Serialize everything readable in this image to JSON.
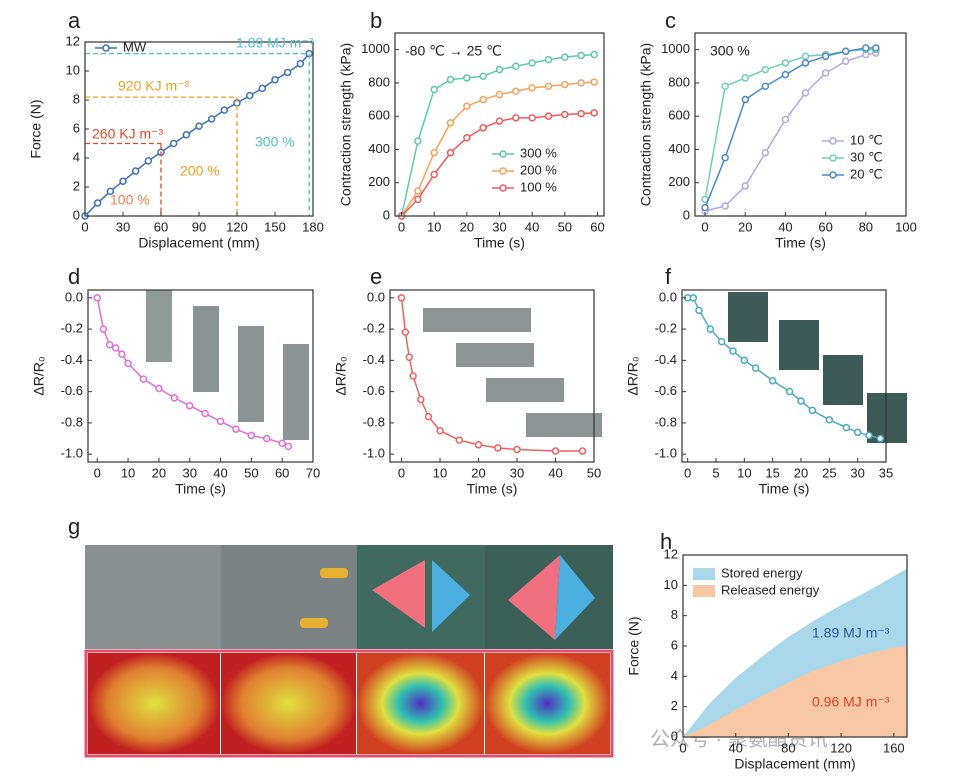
{
  "chart_data": [
    {
      "panel": "a",
      "type": "line",
      "xlabel": "Displacement (mm)",
      "ylabel": "Force (N)",
      "x": [
        0,
        10,
        20,
        30,
        40,
        50,
        60,
        70,
        80,
        90,
        100,
        110,
        120,
        130,
        140,
        150,
        160,
        170,
        177
      ],
      "series": [
        {
          "name": "MW",
          "color": "#3f6fb5",
          "values": [
            0,
            0.9,
            1.7,
            2.4,
            3.1,
            3.8,
            4.4,
            5.0,
            5.6,
            6.2,
            6.7,
            7.3,
            7.8,
            8.3,
            8.8,
            9.4,
            9.9,
            10.5,
            11.2
          ]
        }
      ],
      "xlim": [
        0,
        180
      ],
      "ylim": [
        0,
        12
      ],
      "xticks": [
        0,
        30,
        60,
        90,
        120,
        150,
        180
      ],
      "yticks": [
        0,
        2,
        4,
        6,
        8,
        10,
        12
      ],
      "guides": [
        {
          "x": 60,
          "y": 5,
          "color": "#e8452a"
        },
        {
          "x": 120,
          "y": 8.2,
          "color": "#f0a020"
        },
        {
          "x": 177,
          "y": 11.2,
          "color": "#4cc3c8"
        }
      ],
      "annotations": [
        {
          "text": "1.89 MJ m⁻³",
          "color": "#4cc3c8"
        },
        {
          "text": "920 KJ m⁻³",
          "color": "#f0a020"
        },
        {
          "text": "260 KJ m⁻³",
          "color": "#e8452a"
        },
        {
          "text": "100 %",
          "color": "#f08050"
        },
        {
          "text": "200 %",
          "color": "#f0a020"
        },
        {
          "text": "300 %",
          "color": "#4cc3c8"
        }
      ]
    },
    {
      "panel": "b",
      "type": "line",
      "xlabel": "Time (s)",
      "ylabel": "Contraction strength (kPa)",
      "x": [
        0,
        5,
        10,
        15,
        20,
        25,
        30,
        35,
        40,
        45,
        50,
        55,
        59
      ],
      "series": [
        {
          "name": "300 %",
          "color": "#5ccba8",
          "values": [
            0,
            450,
            760,
            820,
            830,
            840,
            880,
            900,
            920,
            940,
            955,
            965,
            970
          ]
        },
        {
          "name": "200 %",
          "color": "#f7a15a",
          "values": [
            0,
            150,
            380,
            560,
            660,
            700,
            730,
            750,
            770,
            780,
            790,
            800,
            805
          ]
        },
        {
          "name": "100 %",
          "color": "#f05a5a",
          "values": [
            0,
            100,
            250,
            380,
            470,
            530,
            570,
            590,
            590,
            600,
            610,
            615,
            620
          ]
        }
      ],
      "xlim": [
        -2,
        62
      ],
      "ylim": [
        0,
        1100
      ],
      "xticks": [
        0,
        10,
        20,
        30,
        40,
        50,
        60
      ],
      "yticks": [
        0,
        200,
        400,
        600,
        800,
        1000
      ],
      "annotations": [
        {
          "text": "-80 ℃ → 25 ℃",
          "color": "#222222"
        }
      ]
    },
    {
      "panel": "c",
      "type": "line",
      "xlabel": "Time (s)",
      "ylabel": "Contraction strength (kPa)",
      "x": [
        0,
        10,
        20,
        30,
        40,
        50,
        60,
        70,
        80,
        85
      ],
      "series": [
        {
          "name": "10 ℃",
          "color": "#b3a9df",
          "values": [
            30,
            60,
            180,
            380,
            580,
            740,
            860,
            930,
            970,
            980
          ]
        },
        {
          "name": "30 ℃",
          "color": "#6fd0b0",
          "values": [
            100,
            780,
            830,
            880,
            920,
            960,
            970,
            990,
            1000,
            1000
          ]
        },
        {
          "name": "20 ℃",
          "color": "#4a8ac4",
          "values": [
            50,
            350,
            700,
            780,
            850,
            920,
            960,
            990,
            1010,
            1010
          ]
        }
      ],
      "xlim": [
        -5,
        100
      ],
      "ylim": [
        0,
        1100
      ],
      "xticks": [
        0,
        20,
        40,
        60,
        80,
        100
      ],
      "yticks": [
        0,
        200,
        400,
        600,
        800,
        1000
      ],
      "annotations": [
        {
          "text": "300 %",
          "color": "#222222"
        }
      ]
    },
    {
      "panel": "d",
      "type": "line",
      "xlabel": "Time (s)",
      "ylabel": "ΔR/R₀",
      "x": [
        0,
        2,
        4,
        6,
        8,
        10,
        15,
        20,
        25,
        30,
        35,
        40,
        45,
        50,
        55,
        60,
        62
      ],
      "series": [
        {
          "color": "#e070d0",
          "values": [
            0,
            -0.2,
            -0.3,
            -0.32,
            -0.36,
            -0.42,
            -0.52,
            -0.58,
            -0.64,
            -0.69,
            -0.74,
            -0.79,
            -0.84,
            -0.88,
            -0.9,
            -0.93,
            -0.95
          ]
        }
      ],
      "xlim": [
        -3,
        70
      ],
      "ylim": [
        -1.05,
        0.05
      ],
      "xticks": [
        0,
        10,
        20,
        30,
        40,
        50,
        60,
        70
      ],
      "yticks": [
        {
          "value": 0,
          "label": "0.0"
        },
        -0.2,
        -0.4,
        -0.6,
        -0.8,
        {
          "value": -1,
          "label": "-1.0"
        }
      ]
    },
    {
      "panel": "e",
      "type": "line",
      "xlabel": "Time (s)",
      "ylabel": "ΔR/R₀",
      "x": [
        0,
        1,
        2,
        3,
        5,
        7,
        10,
        15,
        20,
        25,
        30,
        40,
        47
      ],
      "series": [
        {
          "color": "#f06060",
          "values": [
            0,
            -0.22,
            -0.38,
            -0.5,
            -0.65,
            -0.76,
            -0.85,
            -0.91,
            -0.94,
            -0.96,
            -0.97,
            -0.98,
            -0.98
          ]
        }
      ],
      "xlim": [
        -3,
        50
      ],
      "ylim": [
        -1.05,
        0.05
      ],
      "xticks": [
        0,
        10,
        20,
        30,
        40,
        50
      ],
      "yticks": [
        {
          "value": 0,
          "label": "0.0"
        },
        -0.2,
        -0.4,
        -0.6,
        -0.8,
        {
          "value": -1,
          "label": "-1.0"
        }
      ]
    },
    {
      "panel": "f",
      "type": "line",
      "xlabel": "Time (s)",
      "ylabel": "ΔR/R₀",
      "x": [
        0,
        1,
        2,
        4,
        6,
        8,
        10,
        12,
        15,
        18,
        20,
        22,
        25,
        28,
        30,
        32,
        34
      ],
      "series": [
        {
          "color": "#4aacb8",
          "values": [
            0,
            0,
            -0.08,
            -0.2,
            -0.28,
            -0.34,
            -0.4,
            -0.45,
            -0.53,
            -0.6,
            -0.66,
            -0.72,
            -0.78,
            -0.83,
            -0.86,
            -0.88,
            -0.9
          ]
        }
      ],
      "xlim": [
        -1,
        35
      ],
      "ylim": [
        -1.05,
        0.05
      ],
      "xticks": [
        0,
        5,
        10,
        15,
        20,
        25,
        30,
        35
      ],
      "yticks": [
        {
          "value": 0,
          "label": "0.0"
        },
        -0.2,
        -0.4,
        -0.6,
        -0.8,
        {
          "value": -1,
          "label": "-1.0"
        }
      ]
    },
    {
      "panel": "h",
      "type": "area",
      "xlabel": "Displacement (mm)",
      "ylabel": "Force (N)",
      "x": [
        0,
        20,
        40,
        60,
        80,
        100,
        120,
        140,
        160,
        170
      ],
      "series": [
        {
          "name": "Stored energy",
          "color": "#a8d8ea",
          "values": [
            0,
            2.2,
            3.9,
            5.3,
            6.6,
            7.7,
            8.7,
            9.6,
            10.6,
            11.1
          ]
        },
        {
          "name": "Released energy",
          "color": "#f8c8a4",
          "values": [
            0,
            0.8,
            1.8,
            2.7,
            3.6,
            4.4,
            5.0,
            5.5,
            5.9,
            6.0
          ]
        }
      ],
      "xlim": [
        0,
        170
      ],
      "ylim": [
        0,
        12
      ],
      "xticks": [
        0,
        40,
        80,
        120,
        160
      ],
      "yticks": [
        0,
        2,
        4,
        6,
        8,
        10,
        12
      ],
      "annotations": [
        {
          "text": "1.89 MJ m⁻³",
          "color": "#2a5a9a"
        },
        {
          "text": "0.96 MJ m⁻³",
          "color": "#e0402a"
        }
      ]
    }
  ],
  "panel_g": {
    "label": "g"
  },
  "watermark": "公众号 · 聚氨酯资讯"
}
